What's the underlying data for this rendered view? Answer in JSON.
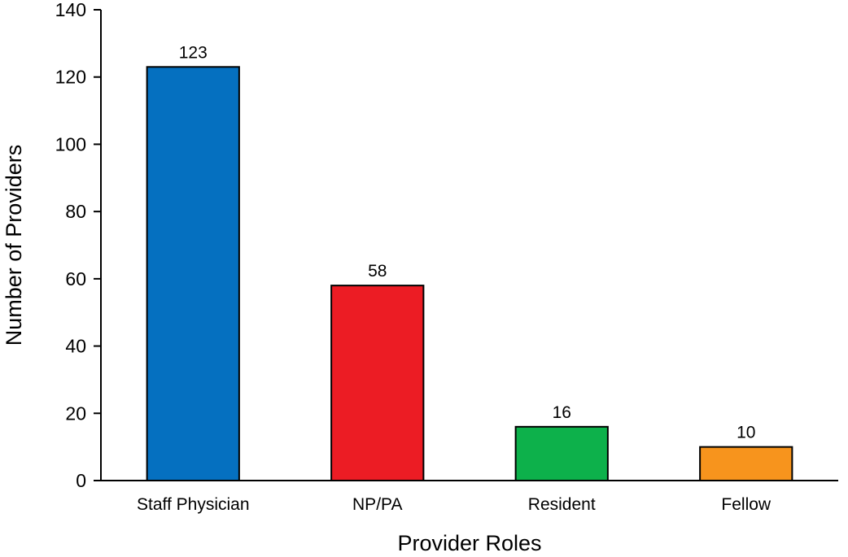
{
  "chart_data": {
    "type": "bar",
    "title": "",
    "xlabel": "Provider Roles",
    "ylabel": "Number of Providers",
    "categories": [
      "Staff Physician",
      "NP/PA",
      "Resident",
      "Fellow"
    ],
    "values": [
      123,
      58,
      16,
      10
    ],
    "data_labels": [
      "123",
      "58",
      "16",
      "10"
    ],
    "colors": [
      "#0570c0",
      "#ec1c24",
      "#0db14b",
      "#f7941d"
    ],
    "ylim": [
      0,
      140
    ],
    "yticks": [
      0,
      20,
      40,
      60,
      80,
      100,
      120,
      140
    ],
    "ytick_labels": [
      "0",
      "20",
      "40",
      "60",
      "80",
      "100",
      "120",
      "140"
    ],
    "grid": false,
    "legend": "none"
  }
}
